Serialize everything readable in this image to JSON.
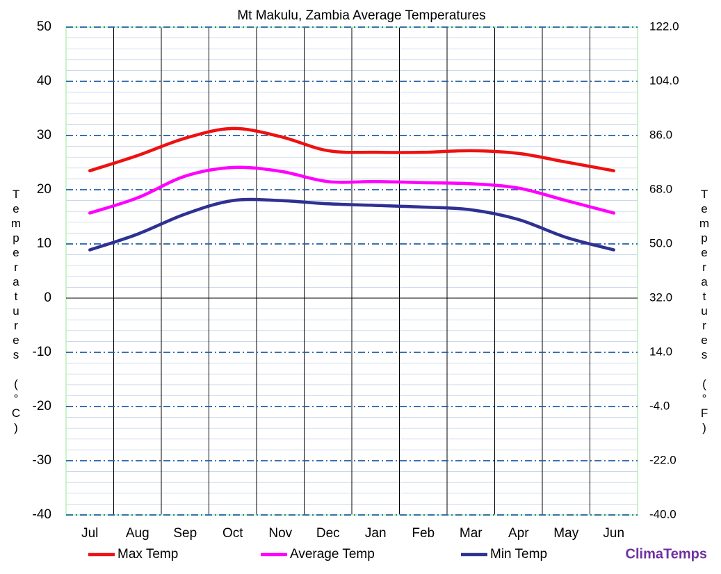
{
  "chart_data": {
    "type": "line",
    "title": "Mt Makulu, Zambia Average Temperatures",
    "y_label": "Temperatures (°C)",
    "y2_label": "Temperatures (°F)",
    "categories": [
      "Jul",
      "Aug",
      "Sep",
      "Oct",
      "Nov",
      "Dec",
      "Jan",
      "Feb",
      "Mar",
      "Apr",
      "May",
      "Jun"
    ],
    "series": [
      {
        "name": "Max Temp",
        "color": "#ee1111",
        "values": [
          23.5,
          26.3,
          29.5,
          31.3,
          29.8,
          27.2,
          26.9,
          26.9,
          27.2,
          26.7,
          25.1,
          23.5
        ]
      },
      {
        "name": "Average Temp",
        "color": "#ff00ff",
        "values": [
          15.7,
          18.5,
          22.5,
          24.1,
          23.4,
          21.5,
          21.5,
          21.3,
          21.1,
          20.3,
          18.0,
          15.7
        ]
      },
      {
        "name": "Min Temp",
        "color": "#2e3192",
        "values": [
          8.9,
          11.8,
          15.5,
          18.0,
          18.0,
          17.4,
          17.1,
          16.8,
          16.3,
          14.5,
          11.2,
          8.9
        ]
      }
    ],
    "ylim": [
      -40,
      50
    ],
    "yticks": [
      -40,
      -30,
      -20,
      -10,
      0,
      10,
      20,
      30,
      40,
      50
    ],
    "y2lim": [
      -40,
      122
    ],
    "y2ticks": [
      {
        "value": -40,
        "label": "-40.0"
      },
      {
        "value": -22,
        "label": "-22.0"
      },
      {
        "value": -4,
        "label": "-4.0"
      },
      {
        "value": 14,
        "label": "14.0"
      },
      {
        "value": 32,
        "label": "32.0"
      },
      {
        "value": 50,
        "label": "50.0"
      },
      {
        "value": 68,
        "label": "68.0"
      },
      {
        "value": 86,
        "label": "86.0"
      },
      {
        "value": 104,
        "label": "104.0"
      },
      {
        "value": 122,
        "label": "122.0"
      }
    ],
    "grid": true,
    "legend": "bottom",
    "brand": "ClimaTemps"
  }
}
